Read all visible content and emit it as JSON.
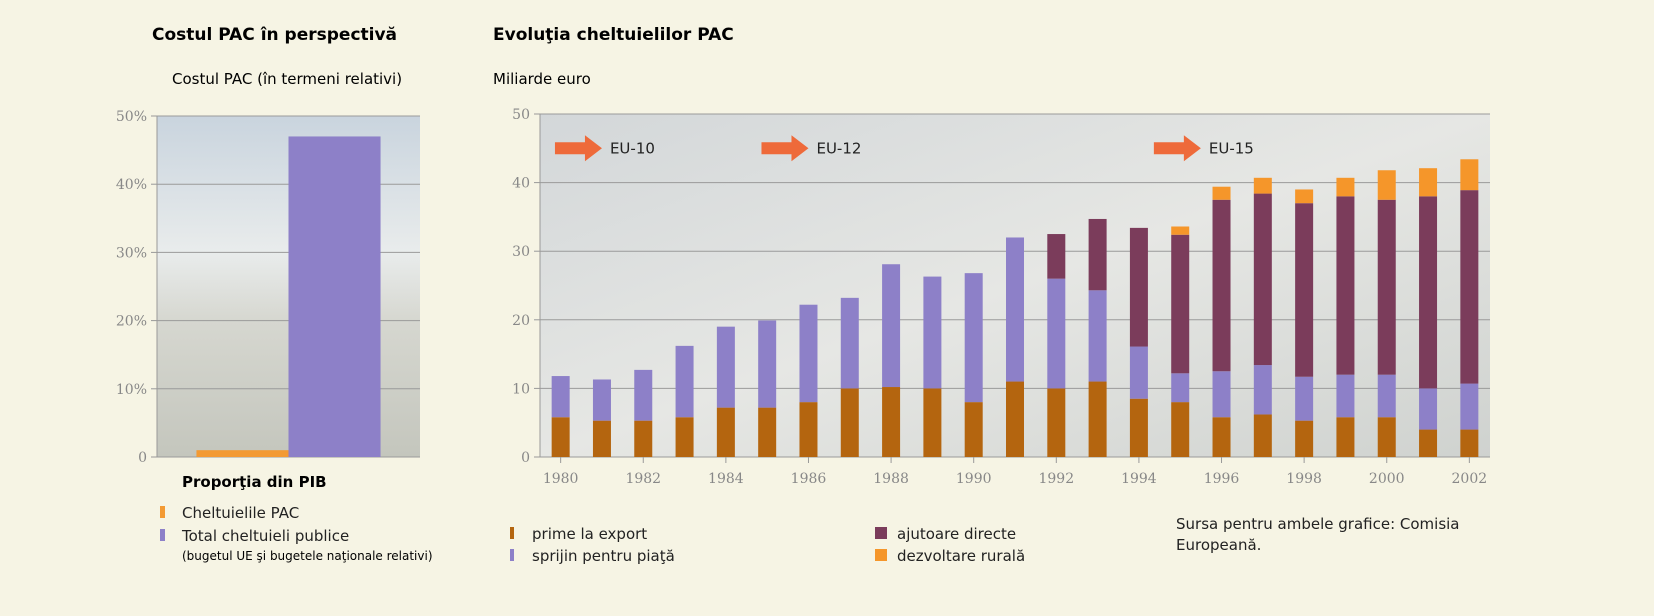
{
  "chart_data": [
    {
      "type": "bar",
      "title": "Costul PAC în perspectivă",
      "subtitle": "Costul PAC (în termeni relativi)",
      "categories": [
        null
      ],
      "series": [
        {
          "name": "Cheltuielile PAC",
          "color": "#f39a33",
          "values": [
            1
          ]
        },
        {
          "name": "Total cheltuieli publice",
          "color": "#8d80c8",
          "values": [
            47
          ]
        }
      ],
      "legend_title": "Proporţia din PIB",
      "legend_note": "(bugetul UE şi bugetele naţionale relativi)",
      "ylim": [
        0,
        50
      ],
      "yticks": [
        0,
        {
          "value": 10,
          "label": "10%"
        },
        {
          "value": 20,
          "label": "20%"
        },
        {
          "value": 30,
          "label": "30%"
        },
        {
          "value": 40,
          "label": "40%"
        },
        {
          "value": 50,
          "label": "50%"
        }
      ],
      "grid": true
    },
    {
      "type": "stacked_bar",
      "title": "Evoluţia cheltuielilor PAC",
      "subtitle": "Miliarde euro",
      "x": [
        1980,
        1981,
        1982,
        1983,
        1984,
        1985,
        1986,
        1987,
        1988,
        1989,
        1990,
        1991,
        1992,
        1993,
        1994,
        1995,
        1996,
        1997,
        1998,
        1999,
        2000,
        2001,
        2002
      ],
      "series": [
        {
          "name": "prime la export",
          "color": "#b4650f",
          "values": [
            5.8,
            5.3,
            5.3,
            5.8,
            7.2,
            7.2,
            8.0,
            10.0,
            10.2,
            10.0,
            8.0,
            11.0,
            10.0,
            11.0,
            8.5,
            8.0,
            5.8,
            6.2,
            5.3,
            5.8,
            5.8,
            4.0,
            4.0
          ]
        },
        {
          "name": "sprijin pentru piaţă",
          "color": "#8d80c8",
          "values": [
            6.0,
            6.0,
            7.4,
            10.4,
            11.8,
            12.7,
            14.2,
            13.2,
            17.9,
            16.3,
            18.8,
            21.0,
            16.0,
            13.3,
            7.6,
            4.2,
            6.7,
            7.2,
            6.4,
            6.2,
            6.2,
            6.0,
            6.7
          ]
        },
        {
          "name": "ajutoare directe",
          "color": "#7b3c5b",
          "values": [
            null,
            null,
            null,
            null,
            null,
            null,
            null,
            null,
            null,
            null,
            null,
            null,
            6.5,
            10.4,
            17.3,
            20.2,
            25.0,
            25.0,
            25.3,
            26.0,
            25.5,
            28.0,
            28.2
          ]
        },
        {
          "name": "dezvoltare rurală",
          "color": "#f5962a",
          "values": [
            null,
            null,
            null,
            null,
            null,
            null,
            null,
            null,
            null,
            null,
            null,
            null,
            null,
            null,
            null,
            1.2,
            1.9,
            2.3,
            2.0,
            2.7,
            4.3,
            4.1,
            4.5
          ]
        }
      ],
      "annotations": [
        {
          "text": "EU-10",
          "x": 1981,
          "y": 45
        },
        {
          "text": "EU-12",
          "x": 1986,
          "y": 45
        },
        {
          "text": "EU-15",
          "x": 1995.5,
          "y": 45
        }
      ],
      "xlim": [
        1979.5,
        2002.5
      ],
      "xticks": [
        1980,
        1982,
        1984,
        1986,
        1988,
        1990,
        1992,
        1994,
        1996,
        1998,
        2000,
        2002
      ],
      "ylim": [
        0,
        50
      ],
      "yticks": [
        0,
        10,
        20,
        30,
        40,
        50
      ],
      "grid": true
    }
  ],
  "source": "Sursa pentru ambele grafice: Comisia Europeană."
}
